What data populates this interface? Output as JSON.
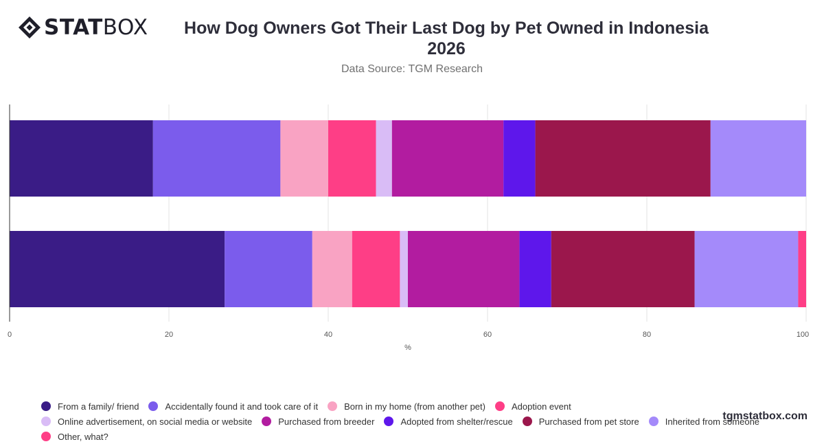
{
  "brand": {
    "logo_bold": "STAT",
    "logo_light": "BOX",
    "logo_name": "STATBOX",
    "footer": "tgmstatbox.com"
  },
  "header": {
    "title": "How Dog Owners Got Their Last Dog by Pet Owned in Indonesia 2026",
    "subtitle": "Data Source: TGM Research"
  },
  "chart_data": {
    "type": "bar",
    "orientation": "horizontal",
    "stacked": true,
    "title": "How Dog Owners Got Their Last Dog by Pet Owned in Indonesia 2026",
    "subtitle": "Data Source: TGM Research",
    "xlabel": "%",
    "ylabel": "",
    "xlim": [
      0,
      100
    ],
    "xticks": [
      0,
      20,
      40,
      60,
      80,
      100
    ],
    "grid": true,
    "legend_position": "bottom",
    "categories": [
      "",
      ""
    ],
    "series": [
      {
        "name": "From a family/ friend",
        "color": "#3a1c86",
        "values": [
          18,
          27
        ]
      },
      {
        "name": "Accidentally found it and took care of it",
        "color": "#7b5cec",
        "values": [
          16,
          11
        ]
      },
      {
        "name": "Born in my home (from another pet)",
        "color": "#f9a3c3",
        "values": [
          6,
          5
        ]
      },
      {
        "name": "Adoption event",
        "color": "#fe3e86",
        "values": [
          6,
          6
        ]
      },
      {
        "name": "Online advertisement, on social media or website",
        "color": "#d9bcf6",
        "values": [
          2,
          1
        ]
      },
      {
        "name": "Purchased from breeder",
        "color": "#b21ca0",
        "values": [
          14,
          14
        ]
      },
      {
        "name": "Adopted from shelter/rescue",
        "color": "#5e17eb",
        "values": [
          4,
          4
        ]
      },
      {
        "name": "Purchased from pet store",
        "color": "#9b174c",
        "values": [
          22,
          18
        ]
      },
      {
        "name": "Inherited from someone",
        "color": "#a48afa",
        "values": [
          12,
          13
        ]
      },
      {
        "name": "Other, what?",
        "color": "#fe3e86",
        "values": [
          0,
          1
        ]
      }
    ]
  }
}
